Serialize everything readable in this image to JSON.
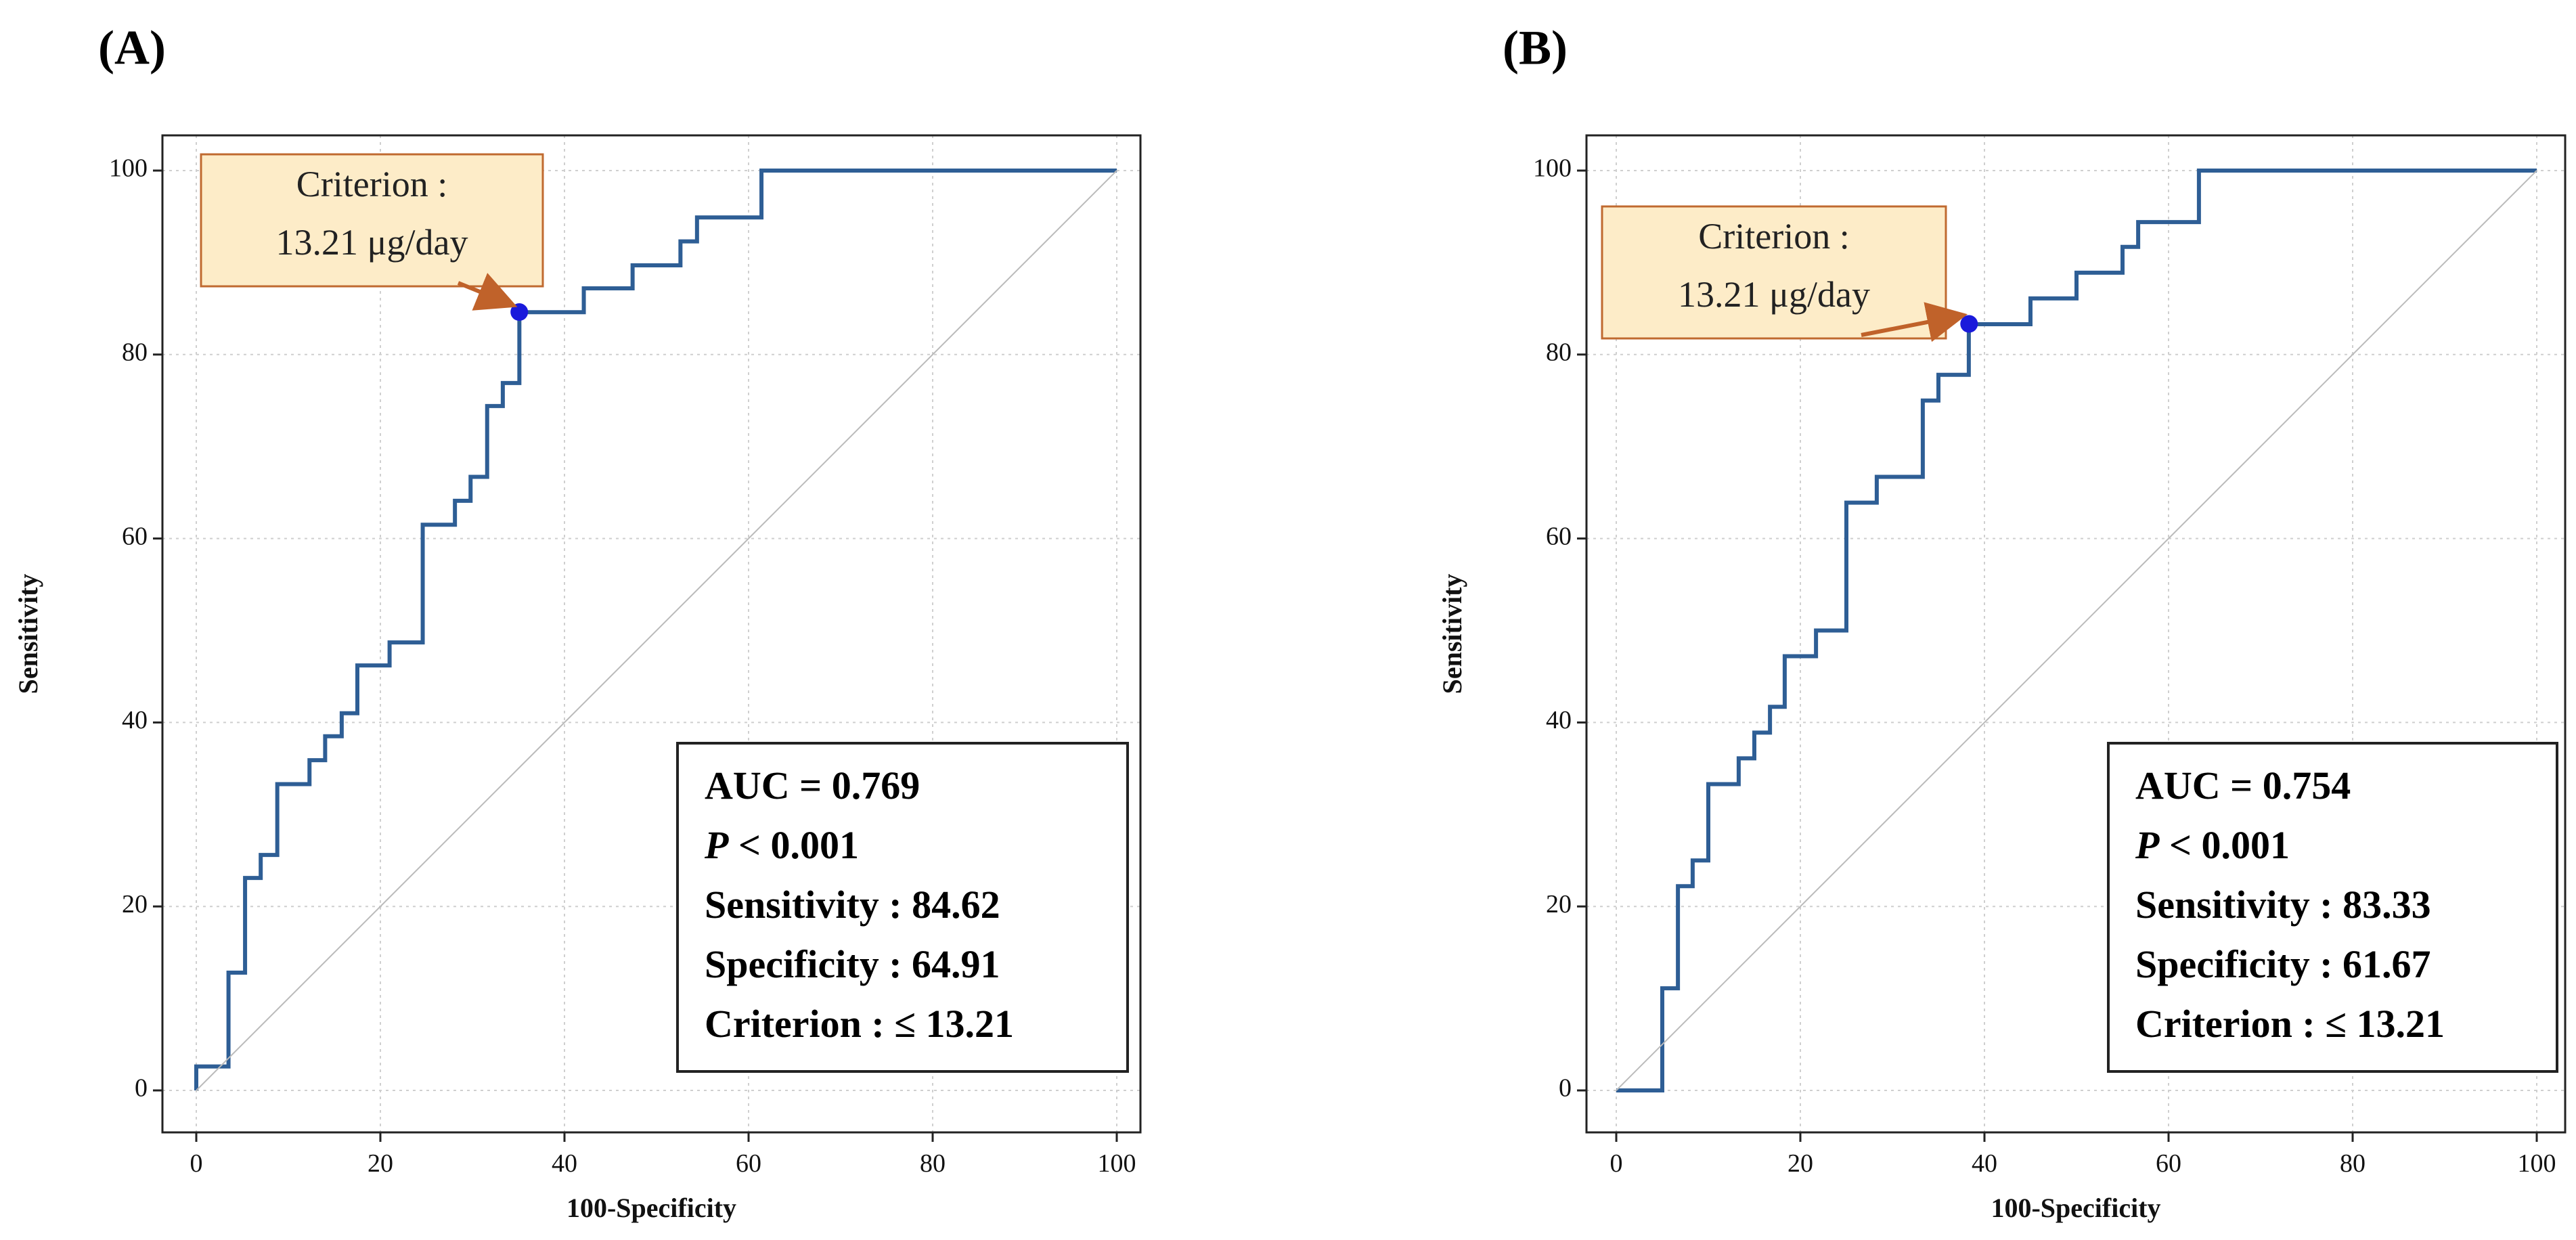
{
  "chart_data": [
    {
      "panel_label": "(A)",
      "type": "line",
      "xlabel": "100-Specificity",
      "ylabel": "Sensitivity",
      "xlim": [
        0,
        100
      ],
      "ylim": [
        0,
        100
      ],
      "x_ticks": [
        "0",
        "20",
        "40",
        "60",
        "80",
        "100"
      ],
      "y_ticks": [
        "0",
        "20",
        "40",
        "60",
        "80",
        "100"
      ],
      "grid": true,
      "series": [
        {
          "role": "roc",
          "color": "#2e5e95",
          "x": [
            0,
            0,
            3.5,
            3.5,
            5.3,
            5.3,
            7.0,
            7.0,
            8.8,
            8.8,
            12.3,
            12.3,
            14.0,
            14.0,
            15.8,
            15.8,
            17.5,
            17.5,
            21.0,
            21.0,
            24.6,
            24.6,
            28.1,
            28.1,
            29.8,
            29.8,
            31.6,
            31.6,
            33.3,
            33.3,
            35.1,
            35.1,
            42.1,
            42.1,
            47.4,
            47.4,
            52.6,
            52.6,
            54.4,
            54.4,
            61.4,
            61.4,
            100
          ],
          "y": [
            0,
            2.6,
            2.6,
            12.8,
            12.8,
            23.1,
            23.1,
            25.6,
            25.6,
            33.3,
            33.3,
            35.9,
            35.9,
            38.5,
            38.5,
            41.0,
            41.0,
            46.2,
            46.2,
            48.7,
            48.7,
            61.5,
            61.5,
            64.1,
            64.1,
            66.7,
            66.7,
            74.4,
            74.4,
            76.9,
            76.9,
            84.6,
            84.6,
            87.2,
            87.2,
            89.7,
            89.7,
            92.3,
            92.3,
            94.9,
            94.9,
            100,
            100
          ]
        },
        {
          "role": "reference",
          "color": "#bbbbbb",
          "x": [
            0,
            100
          ],
          "y": [
            0,
            100
          ]
        }
      ],
      "point": {
        "x": 35.09,
        "y": 84.62,
        "color": "#1a1adb"
      },
      "callout": {
        "line1": "Criterion :",
        "line2": "13.21 μg/day"
      },
      "stats": [
        "AUC = 0.769",
        "P < 0.001",
        "Sensitivity : 84.62",
        "Specificity : 64.91",
        "Criterion : ≤ 13.21"
      ]
    },
    {
      "panel_label": "(B)",
      "type": "line",
      "xlabel": "100-Specificity",
      "ylabel": "Sensitivity",
      "xlim": [
        0,
        100
      ],
      "ylim": [
        0,
        100
      ],
      "x_ticks": [
        "0",
        "20",
        "40",
        "60",
        "80",
        "100"
      ],
      "y_ticks": [
        "0",
        "20",
        "40",
        "60",
        "80",
        "100"
      ],
      "grid": true,
      "series": [
        {
          "role": "roc",
          "color": "#2e5e95",
          "x": [
            0,
            5.0,
            5.0,
            6.7,
            6.7,
            8.3,
            8.3,
            10.0,
            10.0,
            13.3,
            13.3,
            15.0,
            15.0,
            16.7,
            16.7,
            18.3,
            18.3,
            21.7,
            21.7,
            25.0,
            25.0,
            28.3,
            28.3,
            33.3,
            33.3,
            35.0,
            35.0,
            38.3,
            38.3,
            45.0,
            45.0,
            50.0,
            50.0,
            55.0,
            55.0,
            56.7,
            56.7,
            63.3,
            63.3,
            100
          ],
          "y": [
            0,
            0,
            11.1,
            11.1,
            22.2,
            22.2,
            25.0,
            25.0,
            33.3,
            33.3,
            36.1,
            36.1,
            38.9,
            38.9,
            41.7,
            41.7,
            47.2,
            47.2,
            50.0,
            50.0,
            63.9,
            63.9,
            66.7,
            66.7,
            75.0,
            75.0,
            77.8,
            77.8,
            83.3,
            83.3,
            86.1,
            86.1,
            88.9,
            88.9,
            91.7,
            91.7,
            94.4,
            94.4,
            100,
            100
          ]
        },
        {
          "role": "reference",
          "color": "#bbbbbb",
          "x": [
            0,
            100
          ],
          "y": [
            0,
            100
          ]
        }
      ],
      "point": {
        "x": 38.33,
        "y": 83.33,
        "color": "#1a1adb"
      },
      "callout": {
        "line1": "Criterion :",
        "line2": "13.21 μg/day"
      },
      "stats": [
        "AUC = 0.754",
        "P < 0.001",
        "Sensitivity : 83.33",
        "Specificity : 61.67",
        "Criterion : ≤ 13.21"
      ]
    }
  ]
}
